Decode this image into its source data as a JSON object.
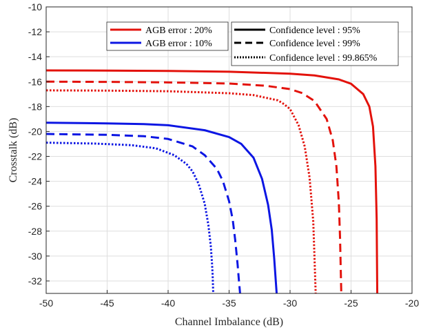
{
  "chart_data": {
    "type": "line",
    "title": "",
    "xlabel": "Channel Imbalance (dB)",
    "ylabel": "Crosstalk (dB)",
    "xlim": [
      -50,
      -20
    ],
    "ylim": [
      -33,
      -10
    ],
    "xticks": [
      -50,
      -45,
      -40,
      -35,
      -30,
      -25,
      -20
    ],
    "yticks": [
      -10,
      -12,
      -14,
      -16,
      -18,
      -20,
      -22,
      -24,
      -26,
      -28,
      -30,
      -32
    ],
    "xtick_labels": [
      "-50",
      "-45",
      "-40",
      "-35",
      "-30",
      "-25",
      "-20"
    ],
    "ytick_labels": [
      "-10",
      "-12",
      "-14",
      "-16",
      "-18",
      "-20",
      "-22",
      "-24",
      "-26",
      "-28",
      "-30",
      "-32"
    ],
    "grid": true,
    "legend_placement": "top",
    "legend_color": [
      {
        "label": "AGB error : 20%",
        "color": "#e3120b"
      },
      {
        "label": "AGB error : 10%",
        "color": "#0c16e3"
      }
    ],
    "legend_style": [
      {
        "label": "Confidence level : 95%",
        "dash": "solid"
      },
      {
        "label": "Confidence level : 99%",
        "dash": "dashed"
      },
      {
        "label": "Confidence level : 99.865%",
        "dash": "dotted"
      }
    ],
    "series": [
      {
        "agb_error": "20%",
        "confidence_level": "95%",
        "color": "#e3120b",
        "dash": "solid",
        "x": [
          -50,
          -45,
          -40,
          -35,
          -30,
          -28,
          -26,
          -25,
          -24,
          -23.5,
          -23.2,
          -23.0,
          -22.9,
          -22.85
        ],
        "y": [
          -15.1,
          -15.11,
          -15.14,
          -15.2,
          -15.36,
          -15.5,
          -15.82,
          -16.17,
          -17.0,
          -18.0,
          -19.6,
          -22.8,
          -27.0,
          -33
        ]
      },
      {
        "agb_error": "20%",
        "confidence_level": "99%",
        "color": "#e3120b",
        "dash": "dashed",
        "x": [
          -50,
          -45,
          -40,
          -35,
          -32,
          -30,
          -29,
          -28,
          -27,
          -26.5,
          -26.2,
          -26.0,
          -25.9,
          -25.8
        ],
        "y": [
          -16.0,
          -16.02,
          -16.06,
          -16.15,
          -16.33,
          -16.6,
          -16.92,
          -17.55,
          -19.0,
          -20.7,
          -22.8,
          -25.7,
          -28.6,
          -33
        ]
      },
      {
        "agb_error": "20%",
        "confidence_level": "99.865%",
        "color": "#e3120b",
        "dash": "dotted",
        "x": [
          -50,
          -45,
          -40,
          -35,
          -33,
          -31,
          -30.5,
          -30,
          -29.3,
          -28.8,
          -28.4,
          -28.1,
          -28.0,
          -27.9
        ],
        "y": [
          -16.7,
          -16.72,
          -16.77,
          -16.93,
          -17.08,
          -17.5,
          -17.8,
          -18.2,
          -19.5,
          -21.2,
          -23.7,
          -27.2,
          -30.0,
          -33
        ]
      },
      {
        "agb_error": "10%",
        "confidence_level": "95%",
        "color": "#0c16e3",
        "dash": "solid",
        "x": [
          -50,
          -45,
          -42,
          -40,
          -37,
          -35,
          -34,
          -33,
          -32.3,
          -31.8,
          -31.5,
          -31.3,
          -31.2,
          -31.1
        ],
        "y": [
          -19.3,
          -19.35,
          -19.41,
          -19.5,
          -19.9,
          -20.45,
          -21.0,
          -22.1,
          -23.8,
          -25.9,
          -27.9,
          -30.2,
          -31.6,
          -33
        ]
      },
      {
        "agb_error": "10%",
        "confidence_level": "99%",
        "color": "#0c16e3",
        "dash": "dashed",
        "x": [
          -50,
          -45,
          -42,
          -40,
          -38,
          -37,
          -36,
          -35.5,
          -35.0,
          -34.7,
          -34.5,
          -34.3,
          -34.2,
          -34.1
        ],
        "y": [
          -20.2,
          -20.27,
          -20.38,
          -20.6,
          -21.2,
          -21.9,
          -23.0,
          -24.0,
          -25.6,
          -27.1,
          -28.7,
          -30.7,
          -31.9,
          -33
        ]
      },
      {
        "agb_error": "10%",
        "confidence_level": "99.865%",
        "color": "#0c16e3",
        "dash": "dotted",
        "x": [
          -50,
          -46,
          -43,
          -41,
          -39.5,
          -38.5,
          -38,
          -37.5,
          -37.0,
          -36.7,
          -36.5,
          -36.4,
          -36.35,
          -36.3
        ],
        "y": [
          -20.9,
          -20.97,
          -21.1,
          -21.35,
          -21.9,
          -22.6,
          -23.2,
          -24.2,
          -25.8,
          -27.5,
          -29.2,
          -30.6,
          -31.5,
          -33
        ]
      }
    ]
  }
}
